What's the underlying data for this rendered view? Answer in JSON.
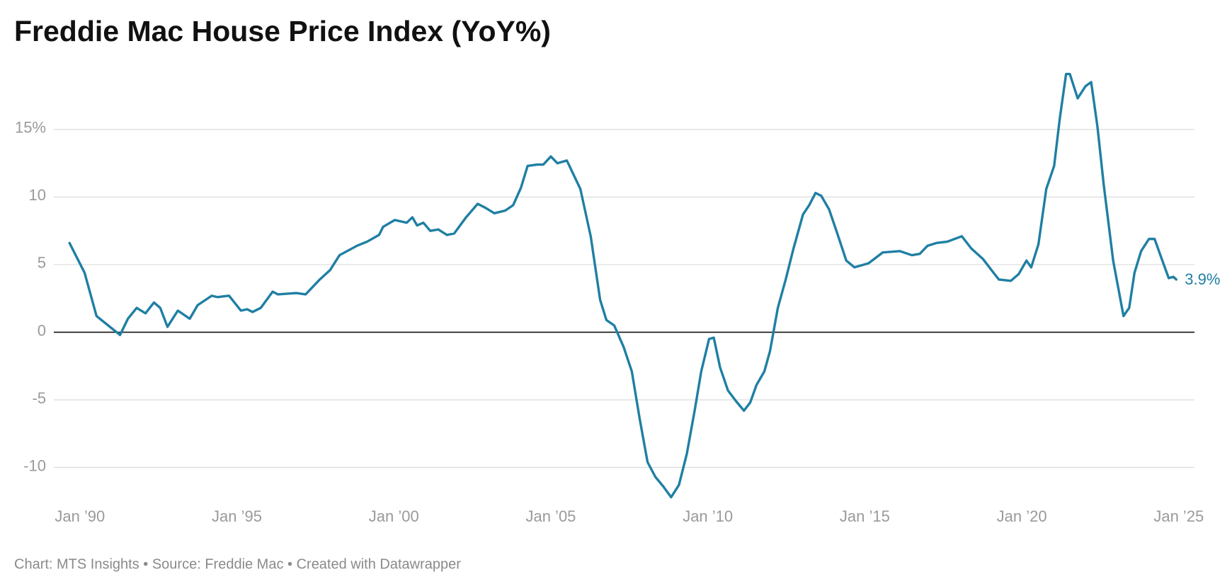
{
  "chart_data": {
    "type": "line",
    "title": "Freddie Mac House Price Index (YoY%)",
    "source": "Chart: MTS Insights • Source: Freddie Mac • Created with Datawrapper",
    "xlim": [
      1989.17,
      2025.5
    ],
    "xticks": [
      {
        "value": 1990,
        "label": "Jan ’90"
      },
      {
        "value": 1995,
        "label": "Jan ’95"
      },
      {
        "value": 2000,
        "label": "Jan ’00"
      },
      {
        "value": 2005,
        "label": "Jan ’05"
      },
      {
        "value": 2010,
        "label": "Jan ’10"
      },
      {
        "value": 2015,
        "label": "Jan ’15"
      },
      {
        "value": 2020,
        "label": "Jan ’20"
      },
      {
        "value": 2025,
        "label": "Jan ’25"
      }
    ],
    "ylim": [
      -12.8,
      19.6
    ],
    "yticks": [
      -10,
      -5,
      0,
      5,
      10,
      {
        "value": 15,
        "label": "15%"
      }
    ],
    "grid": true,
    "x": [
      1989.67,
      1990.15,
      1990.53,
      1990.85,
      1991.28,
      1991.53,
      1991.81,
      1992.09,
      1992.36,
      1992.56,
      1992.79,
      1993.12,
      1993.5,
      1993.75,
      1994.2,
      1994.38,
      1994.75,
      1995.13,
      1995.33,
      1995.5,
      1995.76,
      1996.14,
      1996.31,
      1996.89,
      1997.19,
      1997.64,
      1997.97,
      1998.27,
      1998.83,
      1999.15,
      1999.53,
      1999.66,
      2000.03,
      2000.41,
      2000.59,
      2000.74,
      2000.94,
      2001.16,
      2001.42,
      2001.69,
      2001.92,
      2002.3,
      2002.67,
      2002.92,
      2003.2,
      2003.55,
      2003.8,
      2004.05,
      2004.26,
      2004.56,
      2004.76,
      2005.0,
      2005.21,
      2005.51,
      2005.94,
      2006.27,
      2006.57,
      2006.77,
      2007.02,
      2007.32,
      2007.58,
      2007.83,
      2008.08,
      2008.33,
      2008.58,
      2008.83,
      2009.08,
      2009.33,
      2009.58,
      2009.79,
      2010.04,
      2010.19,
      2010.39,
      2010.64,
      2010.9,
      2011.15,
      2011.35,
      2011.55,
      2011.8,
      2011.98,
      2012.23,
      2012.48,
      2012.73,
      2013.03,
      2013.23,
      2013.43,
      2013.61,
      2013.86,
      2014.11,
      2014.41,
      2014.67,
      2015.12,
      2015.57,
      2016.12,
      2016.5,
      2016.75,
      2017.0,
      2017.28,
      2017.63,
      2018.09,
      2018.39,
      2018.77,
      2019.1,
      2019.27,
      2019.65,
      2019.9,
      2020.15,
      2020.3,
      2020.53,
      2020.78,
      2021.03,
      2021.21,
      2021.41,
      2021.53,
      2021.78,
      2022.03,
      2022.21,
      2022.41,
      2022.61,
      2022.91,
      2023.24,
      2023.42,
      2023.59,
      2023.8,
      2024.05,
      2024.23,
      2024.43,
      2024.68,
      2024.83,
      2024.92
    ],
    "series": [
      {
        "color": "#1f7fa3",
        "values": [
          6.6,
          4.4,
          1.2,
          0.6,
          -0.2,
          1.0,
          1.8,
          1.4,
          2.2,
          1.8,
          0.4,
          1.6,
          1.0,
          2.0,
          2.7,
          2.6,
          2.7,
          1.6,
          1.7,
          1.5,
          1.8,
          3.0,
          2.8,
          2.9,
          2.8,
          3.9,
          4.6,
          5.7,
          6.4,
          6.7,
          7.2,
          7.8,
          8.3,
          8.1,
          8.5,
          7.9,
          8.1,
          7.5,
          7.6,
          7.2,
          7.3,
          8.5,
          9.5,
          9.2,
          8.8,
          9.0,
          9.4,
          10.7,
          12.3,
          12.4,
          12.4,
          13.0,
          12.5,
          12.7,
          10.6,
          7.1,
          2.4,
          0.9,
          0.5,
          -1.1,
          -2.9,
          -6.4,
          -9.6,
          -10.7,
          -11.4,
          -12.2,
          -11.3,
          -9.0,
          -5.8,
          -2.9,
          -0.5,
          -0.4,
          -2.6,
          -4.3,
          -5.1,
          -5.8,
          -5.2,
          -3.9,
          -2.9,
          -1.4,
          1.8,
          3.9,
          6.2,
          8.7,
          9.4,
          10.3,
          10.1,
          9.1,
          7.4,
          5.3,
          4.8,
          5.1,
          5.9,
          6.0,
          5.7,
          5.8,
          6.4,
          6.6,
          6.7,
          7.1,
          6.2,
          5.4,
          4.4,
          3.9,
          3.8,
          4.3,
          5.3,
          4.8,
          6.5,
          10.6,
          12.3,
          15.8,
          19.1,
          19.1,
          17.3,
          18.2,
          18.5,
          15.2,
          10.9,
          5.3,
          1.2,
          1.8,
          4.4,
          6.0,
          6.9,
          6.9,
          5.6,
          4.0,
          4.1,
          3.9
        ],
        "value_labels": [
          null,
          null,
          null,
          null,
          null,
          null,
          null,
          null,
          null,
          null,
          null,
          null,
          null,
          null,
          null,
          null,
          null,
          null,
          null,
          null,
          null,
          null,
          null,
          null,
          null,
          null,
          null,
          null,
          null,
          null,
          null,
          null,
          null,
          null,
          null,
          null,
          null,
          null,
          null,
          null,
          null,
          null,
          null,
          null,
          null,
          null,
          null,
          null,
          null,
          null,
          null,
          null,
          null,
          null,
          null,
          null,
          null,
          null,
          null,
          null,
          null,
          null,
          null,
          null,
          null,
          null,
          null,
          null,
          null,
          null,
          null,
          null,
          null,
          null,
          null,
          null,
          null,
          null,
          null,
          null,
          null,
          null,
          null,
          null,
          null,
          null,
          null,
          null,
          null,
          null,
          null,
          null,
          null,
          null,
          null,
          null,
          null,
          null,
          null,
          null,
          null,
          null,
          null,
          null,
          null,
          null,
          null,
          null,
          null,
          null,
          null,
          null,
          null,
          null,
          null,
          null,
          null,
          null,
          null,
          null,
          null,
          null,
          null,
          null,
          null,
          null,
          null,
          null,
          null,
          "3.9%"
        ]
      }
    ]
  }
}
